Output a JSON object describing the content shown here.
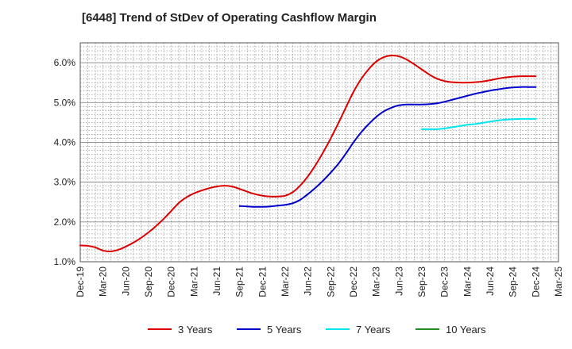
{
  "chart_data": {
    "type": "line",
    "title": "[6448]  Trend of StDev of Operating Cashflow Margin",
    "xlabel": "",
    "ylabel": "",
    "categories": [
      "Dec-19",
      "Mar-20",
      "Jun-20",
      "Sep-20",
      "Dec-20",
      "Mar-21",
      "Jun-21",
      "Sep-21",
      "Dec-21",
      "Mar-22",
      "Jun-22",
      "Sep-22",
      "Dec-22",
      "Mar-23",
      "Jun-23",
      "Sep-23",
      "Dec-23",
      "Mar-24",
      "Jun-24",
      "Sep-24",
      "Dec-24",
      "Mar-25"
    ],
    "y_ticks": [
      "1.0%",
      "2.0%",
      "3.0%",
      "4.0%",
      "5.0%",
      "6.0%"
    ],
    "ylim": [
      1.0,
      6.5
    ],
    "grid": true,
    "legend_position": "bottom",
    "series": [
      {
        "name": "3 Years",
        "color": "#dd0000",
        "x": [
          "Dec-19",
          "Jan-20",
          "Feb-20",
          "Mar-20",
          "Apr-20",
          "May-20",
          "Jun-20",
          "Jul-20",
          "Aug-20",
          "Sep-20",
          "Oct-20",
          "Nov-20",
          "Dec-20",
          "Jan-21",
          "Feb-21",
          "Mar-21",
          "Apr-21",
          "May-21",
          "Jun-21",
          "Jul-21",
          "Aug-21",
          "Sep-21",
          "Oct-21",
          "Nov-21",
          "Dec-21",
          "Jan-22",
          "Feb-22",
          "Mar-22",
          "Apr-22",
          "May-22",
          "Jun-22",
          "Jul-22",
          "Aug-22",
          "Sep-22",
          "Oct-22",
          "Nov-22",
          "Dec-22",
          "Jan-23",
          "Feb-23",
          "Mar-23",
          "Apr-23",
          "May-23",
          "Jun-23",
          "Jul-23",
          "Aug-23",
          "Sep-23",
          "Oct-23",
          "Nov-23",
          "Dec-23",
          "Jan-24",
          "Feb-24",
          "Mar-24",
          "Apr-24",
          "May-24",
          "Jun-24",
          "Jul-24",
          "Aug-24",
          "Sep-24",
          "Oct-24",
          "Nov-24",
          "Dec-24"
        ],
        "values": [
          1.41,
          1.4,
          1.36,
          1.28,
          1.26,
          1.3,
          1.38,
          1.48,
          1.6,
          1.74,
          1.9,
          2.08,
          2.28,
          2.48,
          2.62,
          2.72,
          2.79,
          2.85,
          2.89,
          2.91,
          2.89,
          2.83,
          2.76,
          2.7,
          2.66,
          2.64,
          2.64,
          2.66,
          2.75,
          2.92,
          3.15,
          3.43,
          3.75,
          4.1,
          4.48,
          4.88,
          5.27,
          5.59,
          5.84,
          6.03,
          6.14,
          6.18,
          6.16,
          6.08,
          5.96,
          5.83,
          5.7,
          5.6,
          5.54,
          5.51,
          5.5,
          5.5,
          5.51,
          5.53,
          5.56,
          5.6,
          5.63,
          5.65,
          5.66,
          5.66,
          5.66
        ]
      },
      {
        "name": "5 Years",
        "color": "#0000cc",
        "x": [
          "Sep-21",
          "Oct-21",
          "Nov-21",
          "Dec-21",
          "Jan-22",
          "Feb-22",
          "Mar-22",
          "Apr-22",
          "May-22",
          "Jun-22",
          "Jul-22",
          "Aug-22",
          "Sep-22",
          "Oct-22",
          "Nov-22",
          "Dec-22",
          "Jan-23",
          "Feb-23",
          "Mar-23",
          "Apr-23",
          "May-23",
          "Jun-23",
          "Jul-23",
          "Aug-23",
          "Sep-23",
          "Oct-23",
          "Nov-23",
          "Dec-23",
          "Jan-24",
          "Feb-24",
          "Mar-24",
          "Apr-24",
          "May-24",
          "Jun-24",
          "Jul-24",
          "Aug-24",
          "Sep-24",
          "Oct-24",
          "Nov-24",
          "Dec-24"
        ],
        "values": [
          2.4,
          2.39,
          2.38,
          2.38,
          2.39,
          2.41,
          2.43,
          2.47,
          2.56,
          2.7,
          2.86,
          3.04,
          3.24,
          3.46,
          3.72,
          4.0,
          4.25,
          4.46,
          4.64,
          4.78,
          4.87,
          4.93,
          4.95,
          4.95,
          4.95,
          4.96,
          4.98,
          5.02,
          5.07,
          5.12,
          5.17,
          5.22,
          5.26,
          5.3,
          5.33,
          5.36,
          5.38,
          5.39,
          5.39,
          5.39
        ]
      },
      {
        "name": "7 Years",
        "color": "#00e5ee",
        "x": [
          "Sep-23",
          "Oct-23",
          "Nov-23",
          "Dec-23",
          "Jan-24",
          "Feb-24",
          "Mar-24",
          "Apr-24",
          "May-24",
          "Jun-24",
          "Jul-24",
          "Aug-24",
          "Sep-24",
          "Oct-24",
          "Nov-24",
          "Dec-24"
        ],
        "values": [
          4.33,
          4.33,
          4.33,
          4.35,
          4.38,
          4.41,
          4.44,
          4.46,
          4.49,
          4.52,
          4.55,
          4.57,
          4.58,
          4.59,
          4.59,
          4.59
        ]
      },
      {
        "name": "10 Years",
        "color": "#228b22",
        "x": [],
        "values": []
      }
    ]
  }
}
